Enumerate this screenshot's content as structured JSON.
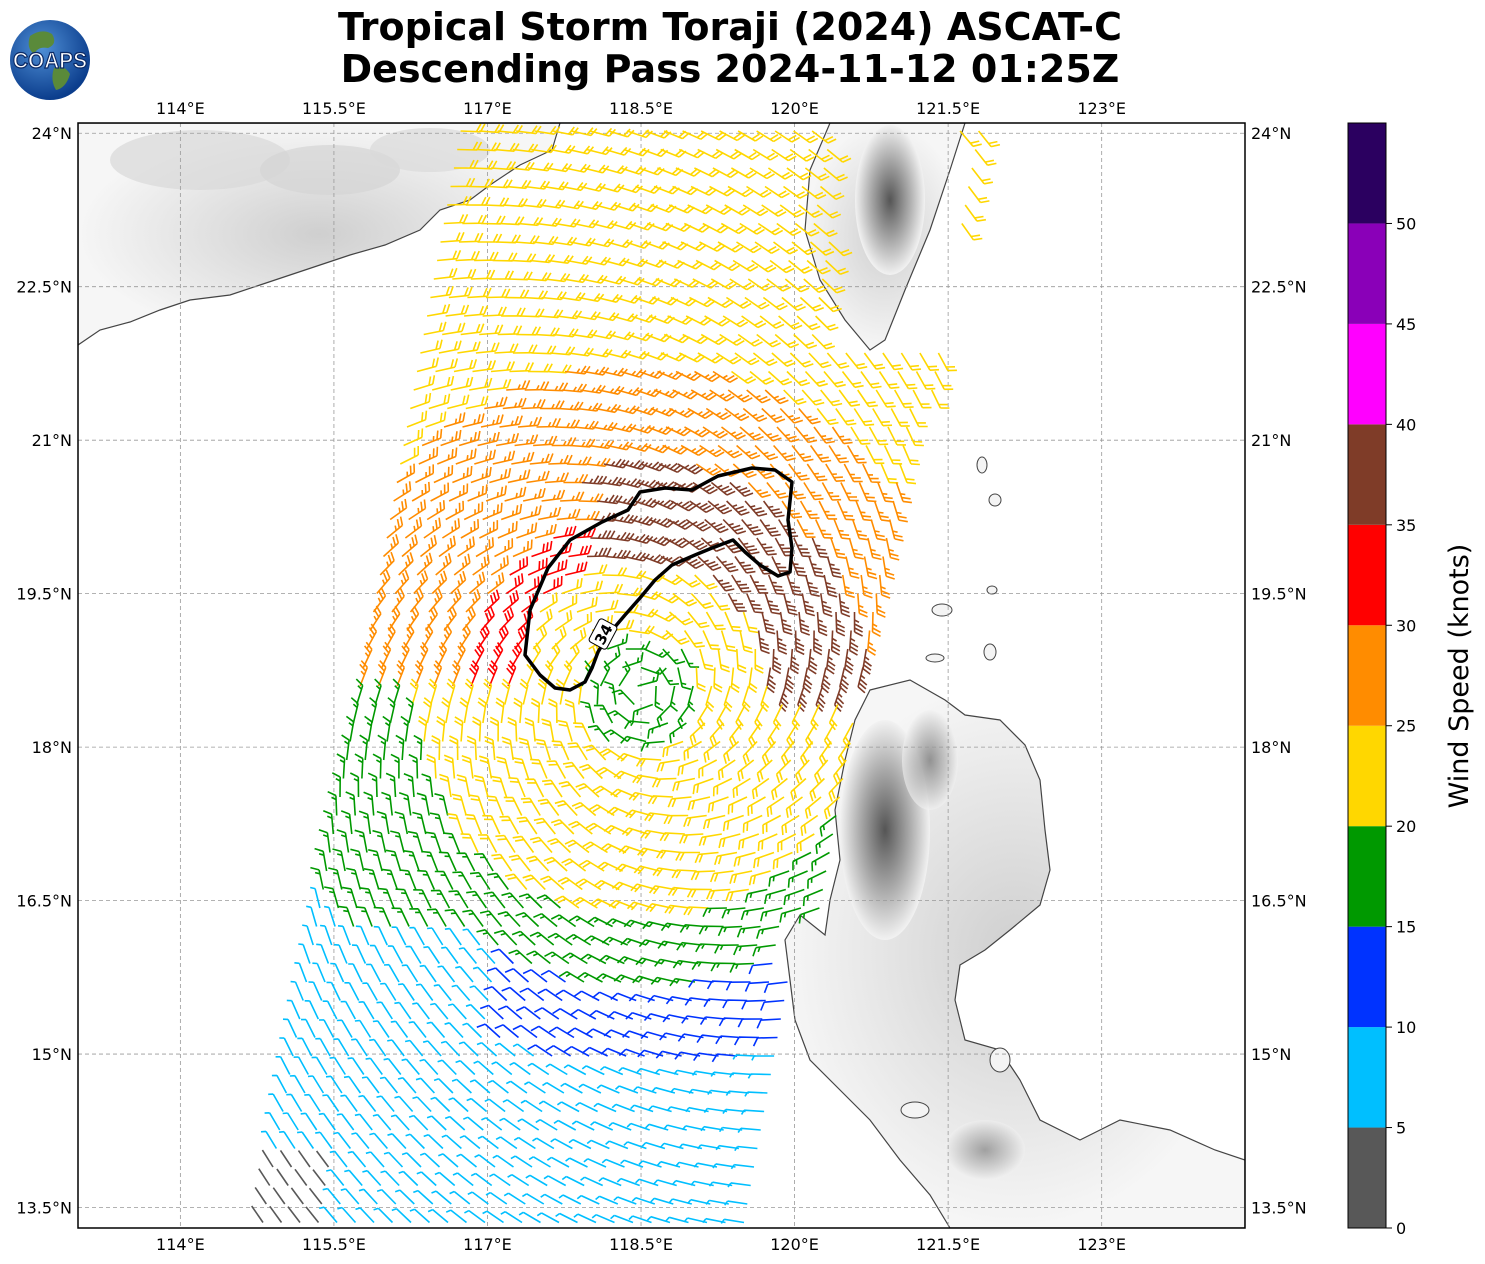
{
  "title": {
    "line1": "Tropical Storm Toraji (2024) ASCAT-C",
    "line2": "Descending Pass 2024-11-12 01:25Z"
  },
  "logo": {
    "text": "COAPS"
  },
  "map": {
    "lon_range": [
      113.0,
      124.4
    ],
    "lat_range": [
      13.3,
      24.1
    ],
    "lon_ticks": [
      "114°E",
      "115.5°E",
      "117°E",
      "118.5°E",
      "120°E",
      "121.5°E",
      "123°E"
    ],
    "lat_ticks": [
      "24°N",
      "22.5°N",
      "21°N",
      "19.5°N",
      "18°N",
      "16.5°N",
      "15°N",
      "13.5°N"
    ],
    "grid": true,
    "storm_center": {
      "lon": 118.5,
      "lat": 18.55
    },
    "contour_label": "34"
  },
  "colorbar": {
    "title": "Wind Speed (knots)",
    "tick_labels": [
      "0",
      "5",
      "10",
      "15",
      "20",
      "25",
      "30",
      "35",
      "40",
      "45",
      "50"
    ],
    "bins": [
      {
        "min": 0,
        "max": 5,
        "color": "#585858"
      },
      {
        "min": 5,
        "max": 10,
        "color": "#00bfff"
      },
      {
        "min": 10,
        "max": 15,
        "color": "#0033ff"
      },
      {
        "min": 15,
        "max": 20,
        "color": "#009900"
      },
      {
        "min": 20,
        "max": 25,
        "color": "#ffd700"
      },
      {
        "min": 25,
        "max": 30,
        "color": "#ff8c00"
      },
      {
        "min": 30,
        "max": 35,
        "color": "#ff0000"
      },
      {
        "min": 35,
        "max": 40,
        "color": "#7f3c28"
      },
      {
        "min": 40,
        "max": 45,
        "color": "#ff00ff"
      },
      {
        "min": 45,
        "max": 50,
        "color": "#8a00b8"
      },
      {
        "min": 50,
        "max": 55,
        "color": "#2b0060"
      }
    ]
  }
}
